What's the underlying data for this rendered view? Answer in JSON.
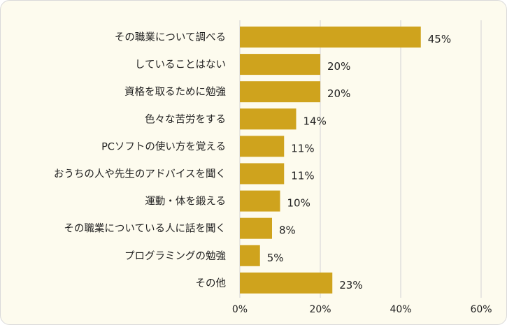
{
  "chart_data": {
    "type": "bar",
    "orientation": "horizontal",
    "categories": [
      "その職業について調べる",
      "していることはない",
      "資格を取るために勉強",
      "色々な苦労をする",
      "PCソフトの使い方を覚える",
      "おうちの人や先生のアドバイスを聞く",
      "運動・体を鍛える",
      "その職業についている人に話を聞く",
      "プログラミングの勉強",
      "その他"
    ],
    "values": [
      45,
      20,
      20,
      14,
      11,
      11,
      10,
      8,
      5,
      23
    ],
    "data_labels": [
      "45%",
      "20%",
      "20%",
      "14%",
      "11%",
      "11%",
      "10%",
      "8%",
      "5%",
      "23%"
    ],
    "xlim": [
      0,
      60
    ],
    "xticks": [
      0,
      20,
      40,
      60
    ],
    "xtick_labels": [
      "0%",
      "20%",
      "40%",
      "60%"
    ],
    "grid": "vertical",
    "legend": "none",
    "bar_color": "#cfa31d",
    "background_color": "#fdfbee",
    "gridline_color": "#d9d9d9"
  }
}
